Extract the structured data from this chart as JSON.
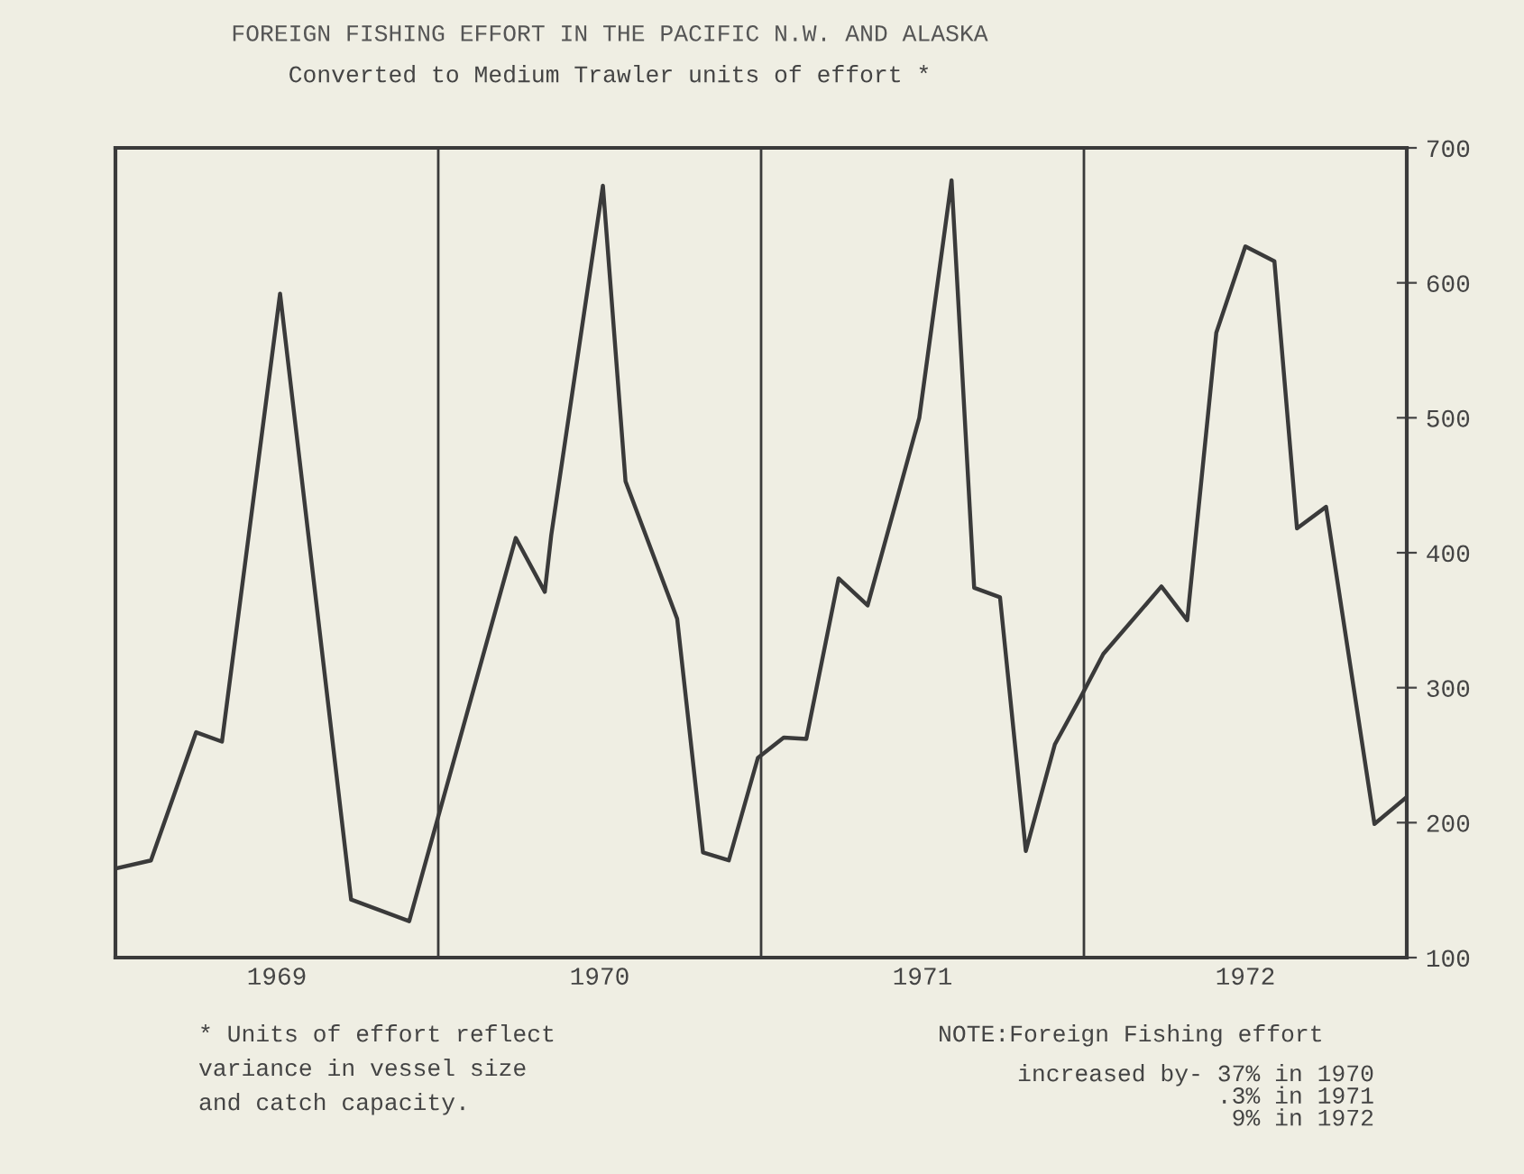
{
  "chart_data": {
    "type": "line",
    "title": "FOREIGN FISHING EFFORT IN THE PACIFIC N.W. AND ALASKA",
    "subtitle": "Converted to Medium Trawler units of effort *",
    "x": [
      1969.0,
      1969.11,
      1969.25,
      1969.33,
      1969.51,
      1969.73,
      1969.91,
      1970.24,
      1970.33,
      1970.35,
      1970.51,
      1970.58,
      1970.74,
      1970.82,
      1970.9,
      1970.99,
      1971.07,
      1971.14,
      1971.24,
      1971.33,
      1971.49,
      1971.59,
      1971.66,
      1971.74,
      1971.82,
      1971.91,
      1971.99,
      1972.06,
      1972.24,
      1972.32,
      1972.41,
      1972.5,
      1972.59,
      1972.66,
      1972.75,
      1972.9,
      1973.0
    ],
    "series": [
      {
        "color": "#3a3a3a",
        "values": [
          166,
          172,
          267,
          260,
          592,
          143,
          127,
          411,
          371,
          413,
          672,
          453,
          351,
          178,
          172,
          248,
          263,
          262,
          381,
          361,
          500,
          676,
          374,
          367,
          179,
          258,
          293,
          325,
          375,
          350,
          563,
          627,
          616,
          418,
          434,
          199,
          219
        ]
      }
    ],
    "xlim": [
      1969,
      1973
    ],
    "xticks": [
      {
        "value": 1969.5,
        "label": "1969"
      },
      {
        "value": 1970.5,
        "label": "1970"
      },
      {
        "value": 1971.5,
        "label": "1971"
      },
      {
        "value": 1972.5,
        "label": "1972"
      }
    ],
    "ylim": [
      100,
      700
    ],
    "yticks": [
      100,
      200,
      300,
      400,
      500,
      600,
      700
    ],
    "ref_lines": [
      {
        "axis": "x",
        "value": 1970,
        "color": "#3a3a3a"
      },
      {
        "axis": "x",
        "value": 1971,
        "color": "#3a3a3a"
      },
      {
        "axis": "x",
        "value": 1972,
        "color": "#3a3a3a"
      }
    ],
    "annotations": [
      "* Units of effort reflect\nvariance in vessel size\nand catch capacity.",
      "NOTE:Foreign Fishing effort\nincreased by- 37% in 1970\n.3% in 1971\n9% in 1972"
    ],
    "grid": false,
    "marker": "none",
    "line_style": "solid"
  }
}
